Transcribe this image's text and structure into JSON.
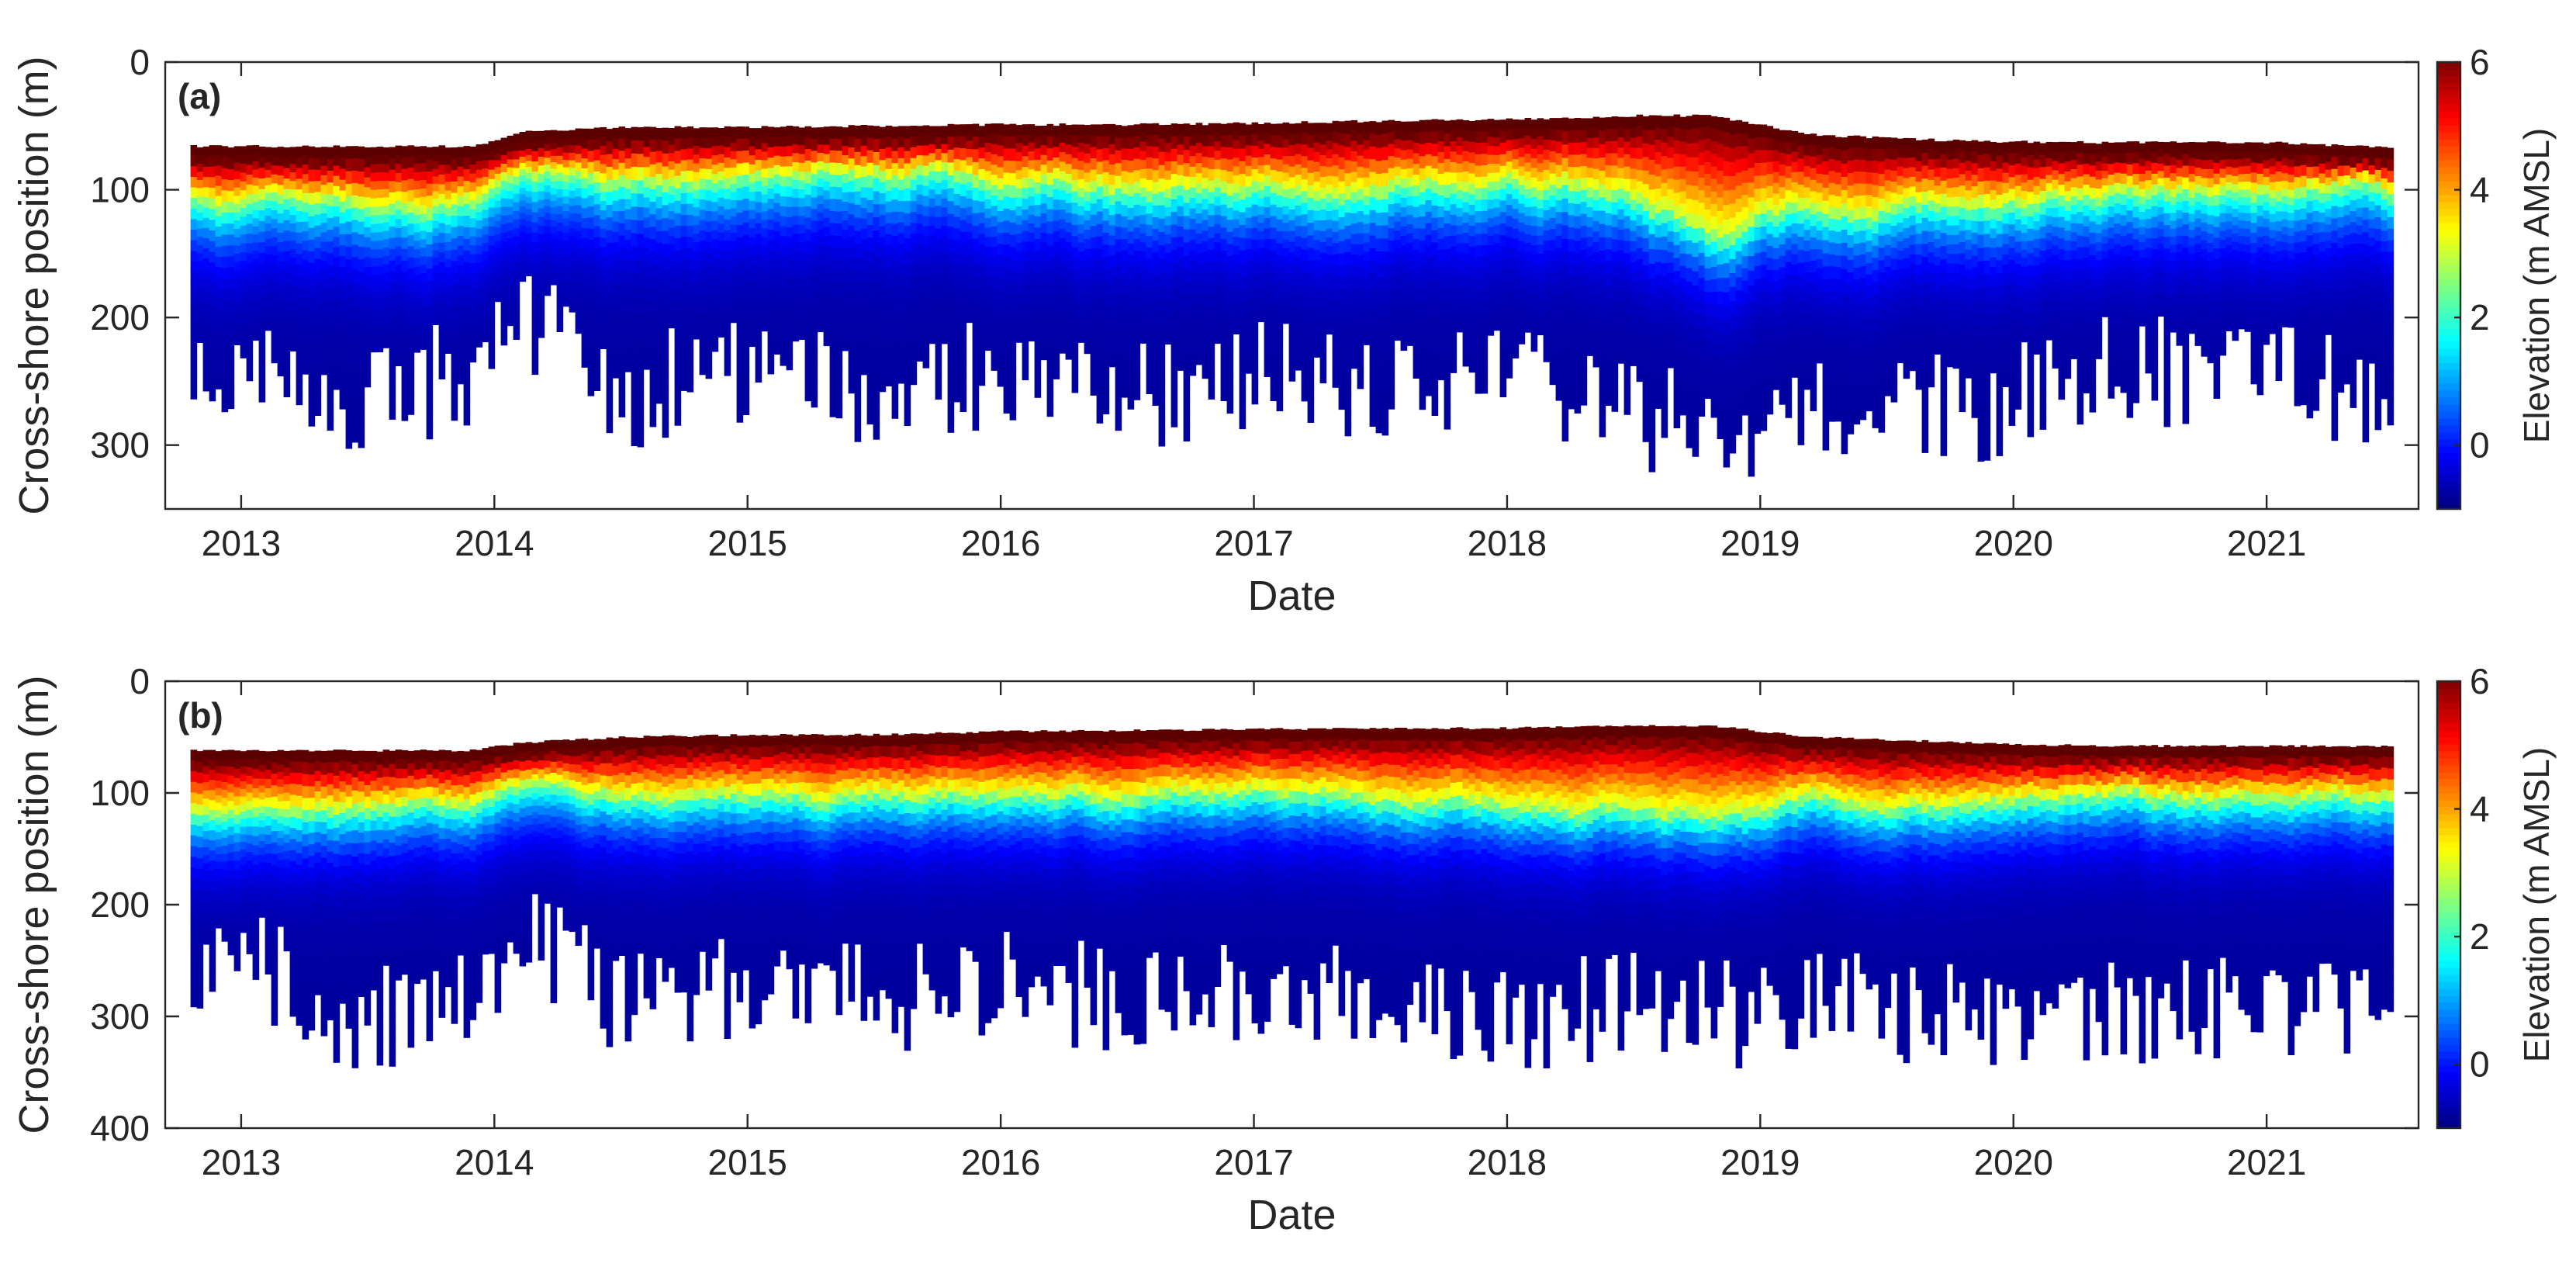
{
  "chart_data": [
    {
      "type": "heatmap",
      "panel_label": "(a)",
      "xlabel": "Date",
      "ylabel": "Cross-shore position (m)",
      "colorbar_label": "Elevation (m AMSL)",
      "xlim": [
        2012.7,
        2021.6
      ],
      "ylim": [
        0,
        350
      ],
      "y_reversed": true,
      "clim": [
        -1,
        6
      ],
      "xticks": [
        2013,
        2014,
        2015,
        2016,
        2017,
        2018,
        2019,
        2020,
        2021
      ],
      "xtick_labels": [
        "2013",
        "2014",
        "2015",
        "2016",
        "2017",
        "2018",
        "2019",
        "2020",
        "2021"
      ],
      "yticks": [
        0,
        100,
        200,
        300
      ],
      "ytick_labels": [
        "0",
        "100",
        "200",
        "300"
      ],
      "cticks": [
        0,
        2,
        4,
        6
      ],
      "ctick_labels": [
        "0",
        "2",
        "4",
        "6"
      ],
      "profile_extent": {
        "dates": [
          2012.8,
          2013.0,
          2013.4,
          2013.9,
          2014.1,
          2014.5,
          2015.0,
          2015.5,
          2016.0,
          2016.5,
          2017.0,
          2017.5,
          2018.0,
          2018.5,
          2018.8,
          2019.2,
          2019.8,
          2020.3,
          2021.0,
          2021.5
        ],
        "landward_limit_m": [
          66,
          66,
          66,
          66,
          55,
          51,
          51,
          50,
          49,
          49,
          48,
          46,
          45,
          42,
          42,
          57,
          62,
          63,
          63,
          67
        ],
        "contour_3m_m": [
          108,
          108,
          110,
          108,
          88,
          92,
          90,
          85,
          90,
          95,
          95,
          92,
          88,
          105,
          135,
          112,
          112,
          102,
          100,
          100
        ],
        "seaward_limit_m": [
          260,
          215,
          270,
          240,
          200,
          260,
          240,
          255,
          245,
          260,
          245,
          260,
          240,
          270,
          300,
          260,
          275,
          240,
          250,
          260
        ]
      },
      "contour_noise_m": 10,
      "seaward_noise_m": 45
    },
    {
      "type": "heatmap",
      "panel_label": "(b)",
      "xlabel": "Date",
      "ylabel": "Cross-shore position (m)",
      "colorbar_label": "Elevation (m AMSL)",
      "xlim": [
        2012.7,
        2021.6
      ],
      "ylim": [
        0,
        400
      ],
      "y_reversed": true,
      "clim": [
        -1,
        6
      ],
      "xticks": [
        2013,
        2014,
        2015,
        2016,
        2017,
        2018,
        2019,
        2020,
        2021
      ],
      "xtick_labels": [
        "2013",
        "2014",
        "2015",
        "2016",
        "2017",
        "2018",
        "2019",
        "2020",
        "2021"
      ],
      "yticks": [
        0,
        100,
        200,
        300,
        400
      ],
      "ytick_labels": [
        "0",
        "100",
        "200",
        "300",
        "400"
      ],
      "cticks": [
        0,
        2,
        4,
        6
      ],
      "ctick_labels": [
        "0",
        "2",
        "4",
        "6"
      ],
      "profile_extent": {
        "dates": [
          2012.8,
          2013.0,
          2013.4,
          2013.9,
          2014.1,
          2014.5,
          2015.0,
          2015.5,
          2016.0,
          2016.5,
          2017.0,
          2017.5,
          2018.0,
          2018.5,
          2018.8,
          2019.2,
          2019.8,
          2020.3,
          2021.0,
          2021.5
        ],
        "landward_limit_m": [
          62,
          62,
          62,
          62,
          55,
          50,
          48,
          48,
          45,
          44,
          43,
          42,
          42,
          40,
          40,
          50,
          55,
          58,
          58,
          58
        ],
        "contour_3m_m": [
          115,
          112,
          112,
          110,
          95,
          105,
          100,
          100,
          95,
          100,
          98,
          100,
          110,
          110,
          115,
          105,
          110,
          100,
          100,
          100
        ],
        "seaward_limit_m": [
          275,
          245,
          305,
          280,
          230,
          290,
          275,
          285,
          270,
          285,
          275,
          285,
          300,
          290,
          300,
          285,
          300,
          300,
          290,
          300
        ]
      },
      "contour_noise_m": 8,
      "seaward_noise_m": 50
    }
  ]
}
